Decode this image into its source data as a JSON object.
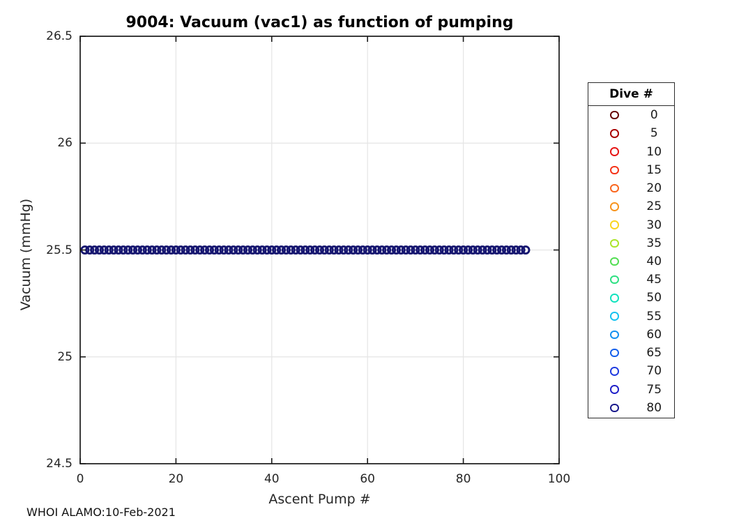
{
  "chart_data": {
    "type": "scatter",
    "title": "9004: Vacuum (vac1) as function of pumping",
    "xlabel": "Ascent Pump #",
    "ylabel": "Vacuum (mmHg)",
    "xlim": [
      0,
      100
    ],
    "ylim": [
      24.5,
      26.5
    ],
    "xticks": [
      0,
      20,
      40,
      60,
      80,
      100
    ],
    "yticks": [
      24.5,
      25,
      25.5,
      26,
      26.5
    ],
    "grid": true,
    "marker": "open-circle",
    "marker_color": "#151570",
    "x": [
      1,
      2,
      3,
      4,
      5,
      6,
      7,
      8,
      9,
      10,
      11,
      12,
      13,
      14,
      15,
      16,
      17,
      18,
      19,
      20,
      21,
      22,
      23,
      24,
      25,
      26,
      27,
      28,
      29,
      30,
      31,
      32,
      33,
      34,
      35,
      36,
      37,
      38,
      39,
      40,
      41,
      42,
      43,
      44,
      45,
      46,
      47,
      48,
      49,
      50,
      51,
      52,
      53,
      54,
      55,
      56,
      57,
      58,
      59,
      60,
      61,
      62,
      63,
      64,
      65,
      66,
      67,
      68,
      69,
      70,
      71,
      72,
      73,
      74,
      75,
      76,
      77,
      78,
      79,
      80,
      81,
      82,
      83,
      84,
      85,
      86,
      87,
      88,
      89,
      90,
      91,
      92,
      93
    ],
    "y_constant": 25.5,
    "legend": {
      "title": "Dive #",
      "position": "outside-right",
      "entries": [
        {
          "label": "0",
          "color": "#660000"
        },
        {
          "label": "5",
          "color": "#A80000"
        },
        {
          "label": "10",
          "color": "#E61414"
        },
        {
          "label": "15",
          "color": "#F53318"
        },
        {
          "label": "20",
          "color": "#FA661E"
        },
        {
          "label": "25",
          "color": "#F7941E"
        },
        {
          "label": "30",
          "color": "#FAD51E"
        },
        {
          "label": "35",
          "color": "#ABE52A"
        },
        {
          "label": "40",
          "color": "#52DE52"
        },
        {
          "label": "45",
          "color": "#2EE082"
        },
        {
          "label": "50",
          "color": "#12E3BE"
        },
        {
          "label": "55",
          "color": "#16C2F0"
        },
        {
          "label": "60",
          "color": "#1490F0"
        },
        {
          "label": "65",
          "color": "#145FEB"
        },
        {
          "label": "70",
          "color": "#1F3BE0"
        },
        {
          "label": "75",
          "color": "#1F1FC8"
        },
        {
          "label": "80",
          "color": "#1A1A8C"
        }
      ]
    }
  },
  "footer": {
    "text": "WHOI ALAMO:10-Feb-2021"
  },
  "colors": {
    "axis": "#1a1a1a",
    "grid": "#E5E5E5",
    "tick_label": "#262626",
    "background": "#FFFFFF"
  }
}
